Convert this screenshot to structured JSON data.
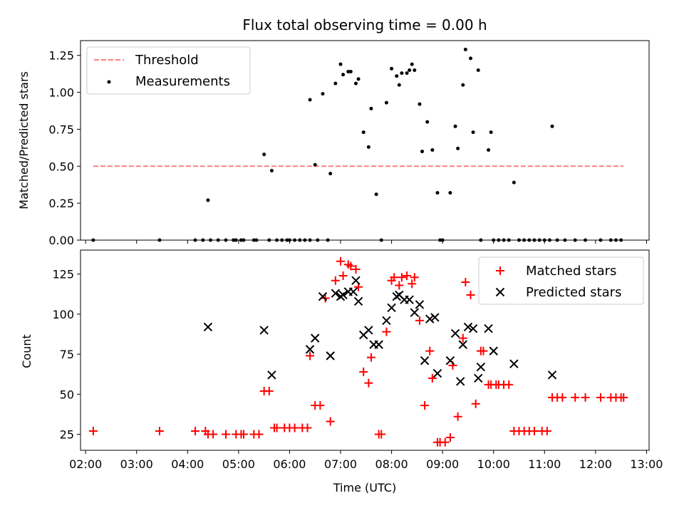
{
  "chart_data": [
    {
      "type": "scatter",
      "title": "Flux total observing time = 0.00 h",
      "xlabel": "",
      "ylabel": "Matched/Predicted stars",
      "ylim": [
        0.0,
        1.35
      ],
      "yticks": [
        0.0,
        0.25,
        0.5,
        0.75,
        1.0,
        1.25
      ],
      "ytick_labels": [
        "0.00",
        "0.25",
        "0.50",
        "0.75",
        "1.00",
        "1.25"
      ],
      "xlim": [
        1.9,
        13.05
      ],
      "xticks": [
        2,
        3,
        4,
        5,
        6,
        7,
        8,
        9,
        10,
        11,
        12,
        13
      ],
      "legend_position": "upper-left",
      "threshold": {
        "name": "Threshold",
        "x": [
          2.15,
          12.55
        ],
        "y": 0.5,
        "color": "#ff7f7f"
      },
      "measurements": {
        "name": "Measurements",
        "color": "#000000",
        "points": [
          [
            2.15,
            0.0
          ],
          [
            3.45,
            0.0
          ],
          [
            4.15,
            0.0
          ],
          [
            4.3,
            0.0
          ],
          [
            4.4,
            0.27
          ],
          [
            4.45,
            0.0
          ],
          [
            4.6,
            0.0
          ],
          [
            4.75,
            0.0
          ],
          [
            4.9,
            0.0
          ],
          [
            4.95,
            0.0
          ],
          [
            5.05,
            0.0
          ],
          [
            5.1,
            0.0
          ],
          [
            5.3,
            0.0
          ],
          [
            5.35,
            0.0
          ],
          [
            5.5,
            0.58
          ],
          [
            5.6,
            0.0
          ],
          [
            5.65,
            0.47
          ],
          [
            5.75,
            0.0
          ],
          [
            5.85,
            0.0
          ],
          [
            5.95,
            0.0
          ],
          [
            6.0,
            0.0
          ],
          [
            6.1,
            0.0
          ],
          [
            6.2,
            0.0
          ],
          [
            6.3,
            0.0
          ],
          [
            6.4,
            0.95
          ],
          [
            6.4,
            0.0
          ],
          [
            6.5,
            0.51
          ],
          [
            6.55,
            0.0
          ],
          [
            6.65,
            0.99
          ],
          [
            6.75,
            0.0
          ],
          [
            6.8,
            0.45
          ],
          [
            6.9,
            1.06
          ],
          [
            7.0,
            1.19
          ],
          [
            7.05,
            1.12
          ],
          [
            7.15,
            1.14
          ],
          [
            7.2,
            1.14
          ],
          [
            7.3,
            1.06
          ],
          [
            7.35,
            1.09
          ],
          [
            7.45,
            0.73
          ],
          [
            7.55,
            0.63
          ],
          [
            7.6,
            0.89
          ],
          [
            7.7,
            0.31
          ],
          [
            7.8,
            0.0
          ],
          [
            7.9,
            0.93
          ],
          [
            8.0,
            1.16
          ],
          [
            8.1,
            1.11
          ],
          [
            8.15,
            1.05
          ],
          [
            8.2,
            1.13
          ],
          [
            8.3,
            1.13
          ],
          [
            8.35,
            1.15
          ],
          [
            8.4,
            1.19
          ],
          [
            8.45,
            1.15
          ],
          [
            8.55,
            0.92
          ],
          [
            8.6,
            0.6
          ],
          [
            8.7,
            0.8
          ],
          [
            8.8,
            0.61
          ],
          [
            8.9,
            0.32
          ],
          [
            8.95,
            0.0
          ],
          [
            9.0,
            0.0
          ],
          [
            9.15,
            0.32
          ],
          [
            9.25,
            0.77
          ],
          [
            9.3,
            0.62
          ],
          [
            9.4,
            1.05
          ],
          [
            9.45,
            1.29
          ],
          [
            9.55,
            1.23
          ],
          [
            9.6,
            0.73
          ],
          [
            9.7,
            1.15
          ],
          [
            9.75,
            0.0
          ],
          [
            9.9,
            0.61
          ],
          [
            9.95,
            0.73
          ],
          [
            10.0,
            0.0
          ],
          [
            10.1,
            0.0
          ],
          [
            10.2,
            0.0
          ],
          [
            10.3,
            0.0
          ],
          [
            10.4,
            0.39
          ],
          [
            10.5,
            0.0
          ],
          [
            10.6,
            0.0
          ],
          [
            10.7,
            0.0
          ],
          [
            10.8,
            0.0
          ],
          [
            10.9,
            0.0
          ],
          [
            11.0,
            0.0
          ],
          [
            11.1,
            0.0
          ],
          [
            11.15,
            0.77
          ],
          [
            11.25,
            0.0
          ],
          [
            11.4,
            0.0
          ],
          [
            11.6,
            0.0
          ],
          [
            11.8,
            0.0
          ],
          [
            12.1,
            0.0
          ],
          [
            12.3,
            0.0
          ],
          [
            12.4,
            0.0
          ],
          [
            12.5,
            0.0
          ]
        ]
      }
    },
    {
      "type": "scatter",
      "xlabel": "Time (UTC)",
      "ylabel": "Count",
      "ylim": [
        15,
        140
      ],
      "yticks": [
        25,
        50,
        75,
        100,
        125
      ],
      "ytick_labels": [
        "25",
        "50",
        "75",
        "100",
        "125"
      ],
      "xlim": [
        1.9,
        13.05
      ],
      "xticks": [
        2,
        3,
        4,
        5,
        6,
        7,
        8,
        9,
        10,
        11,
        12,
        13
      ],
      "xtick_labels": [
        "02:00",
        "03:00",
        "04:00",
        "05:00",
        "06:00",
        "07:00",
        "08:00",
        "09:00",
        "10:00",
        "11:00",
        "12:00",
        "13:00"
      ],
      "legend_position": "upper-right",
      "series": [
        {
          "name": "Matched stars",
          "marker": "plus",
          "color": "#ff0000",
          "points": [
            [
              2.15,
              27
            ],
            [
              3.45,
              27
            ],
            [
              4.15,
              27
            ],
            [
              4.35,
              27
            ],
            [
              4.4,
              25
            ],
            [
              4.5,
              25
            ],
            [
              4.75,
              25
            ],
            [
              4.95,
              25
            ],
            [
              5.05,
              25
            ],
            [
              5.1,
              25
            ],
            [
              5.3,
              25
            ],
            [
              5.4,
              25
            ],
            [
              5.5,
              52
            ],
            [
              5.6,
              52
            ],
            [
              5.7,
              29
            ],
            [
              5.75,
              29
            ],
            [
              5.9,
              29
            ],
            [
              6.0,
              29
            ],
            [
              6.1,
              29
            ],
            [
              6.25,
              29
            ],
            [
              6.35,
              29
            ],
            [
              6.4,
              74
            ],
            [
              6.5,
              43
            ],
            [
              6.6,
              43
            ],
            [
              6.7,
              110
            ],
            [
              6.8,
              33
            ],
            [
              6.9,
              121
            ],
            [
              7.0,
              133
            ],
            [
              7.05,
              124
            ],
            [
              7.15,
              131
            ],
            [
              7.2,
              130
            ],
            [
              7.3,
              128
            ],
            [
              7.35,
              117
            ],
            [
              7.45,
              64
            ],
            [
              7.55,
              57
            ],
            [
              7.6,
              73
            ],
            [
              7.75,
              25
            ],
            [
              7.8,
              25
            ],
            [
              7.9,
              89
            ],
            [
              8.0,
              121
            ],
            [
              8.05,
              123
            ],
            [
              8.15,
              118
            ],
            [
              8.2,
              123
            ],
            [
              8.3,
              124
            ],
            [
              8.4,
              119
            ],
            [
              8.45,
              123
            ],
            [
              8.55,
              96
            ],
            [
              8.65,
              43
            ],
            [
              8.75,
              77
            ],
            [
              8.8,
              60
            ],
            [
              8.9,
              20
            ],
            [
              8.95,
              20
            ],
            [
              9.05,
              20
            ],
            [
              9.15,
              23
            ],
            [
              9.2,
              68
            ],
            [
              9.3,
              36
            ],
            [
              9.4,
              85
            ],
            [
              9.45,
              120
            ],
            [
              9.55,
              112
            ],
            [
              9.65,
              44
            ],
            [
              9.75,
              77
            ],
            [
              9.8,
              77
            ],
            [
              9.9,
              56
            ],
            [
              9.95,
              56
            ],
            [
              10.05,
              56
            ],
            [
              10.1,
              56
            ],
            [
              10.2,
              56
            ],
            [
              10.3,
              56
            ],
            [
              10.4,
              27
            ],
            [
              10.5,
              27
            ],
            [
              10.6,
              27
            ],
            [
              10.7,
              27
            ],
            [
              10.8,
              27
            ],
            [
              10.95,
              27
            ],
            [
              11.05,
              27
            ],
            [
              11.15,
              48
            ],
            [
              11.25,
              48
            ],
            [
              11.35,
              48
            ],
            [
              11.6,
              48
            ],
            [
              11.8,
              48
            ],
            [
              12.1,
              48
            ],
            [
              12.3,
              48
            ],
            [
              12.4,
              48
            ],
            [
              12.5,
              48
            ],
            [
              12.55,
              48
            ]
          ]
        },
        {
          "name": "Predicted stars",
          "marker": "x",
          "color": "#000000",
          "points": [
            [
              4.4,
              92
            ],
            [
              5.5,
              90
            ],
            [
              5.65,
              62
            ],
            [
              6.4,
              78
            ],
            [
              6.5,
              85
            ],
            [
              6.65,
              111
            ],
            [
              6.8,
              74
            ],
            [
              6.9,
              113
            ],
            [
              7.0,
              111
            ],
            [
              7.05,
              112
            ],
            [
              7.15,
              114
            ],
            [
              7.25,
              114
            ],
            [
              7.3,
              121
            ],
            [
              7.35,
              108
            ],
            [
              7.45,
              87
            ],
            [
              7.55,
              90
            ],
            [
              7.65,
              81
            ],
            [
              7.75,
              81
            ],
            [
              7.9,
              96
            ],
            [
              8.0,
              104
            ],
            [
              8.1,
              111
            ],
            [
              8.15,
              112
            ],
            [
              8.25,
              109
            ],
            [
              8.35,
              109
            ],
            [
              8.45,
              101
            ],
            [
              8.55,
              106
            ],
            [
              8.65,
              71
            ],
            [
              8.75,
              97
            ],
            [
              8.85,
              98
            ],
            [
              8.9,
              63
            ],
            [
              9.15,
              71
            ],
            [
              9.25,
              88
            ],
            [
              9.35,
              58
            ],
            [
              9.4,
              81
            ],
            [
              9.5,
              92
            ],
            [
              9.6,
              91
            ],
            [
              9.7,
              60
            ],
            [
              9.75,
              67
            ],
            [
              9.9,
              91
            ],
            [
              10.0,
              77
            ],
            [
              10.4,
              69
            ],
            [
              11.15,
              62
            ]
          ]
        }
      ]
    }
  ]
}
